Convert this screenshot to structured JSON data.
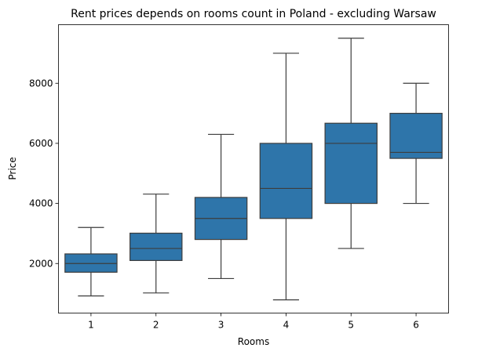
{
  "chart_data": {
    "type": "box",
    "title": "Rent prices depends on rooms count in Poland - excluding Warsaw",
    "xlabel": "Rooms",
    "ylabel": "Price",
    "categories": [
      "1",
      "2",
      "3",
      "4",
      "5",
      "6"
    ],
    "yticks": [
      2000,
      4000,
      6000,
      8000
    ],
    "ylim": [
      350,
      9950
    ],
    "box_color": "#2e75aa",
    "line_color": "#3d3d3d",
    "grid": false,
    "legend": "none",
    "boxes": [
      {
        "category": "1",
        "whisker_low": 920,
        "q1": 1710,
        "median": 2000,
        "q3": 2320,
        "whisker_high": 3200
      },
      {
        "category": "2",
        "whisker_low": 1020,
        "q1": 2100,
        "median": 2500,
        "q3": 3010,
        "whisker_high": 4310
      },
      {
        "category": "3",
        "whisker_low": 1500,
        "q1": 2800,
        "median": 3500,
        "q3": 4200,
        "whisker_high": 6300
      },
      {
        "category": "4",
        "whisker_low": 790,
        "q1": 3500,
        "median": 4500,
        "q3": 6000,
        "whisker_high": 9000
      },
      {
        "category": "5",
        "whisker_low": 2500,
        "q1": 4000,
        "median": 6000,
        "q3": 6670,
        "whisker_high": 9500
      },
      {
        "category": "6",
        "whisker_low": 4000,
        "q1": 5500,
        "median": 5700,
        "q3": 7000,
        "whisker_high": 8000
      }
    ]
  }
}
